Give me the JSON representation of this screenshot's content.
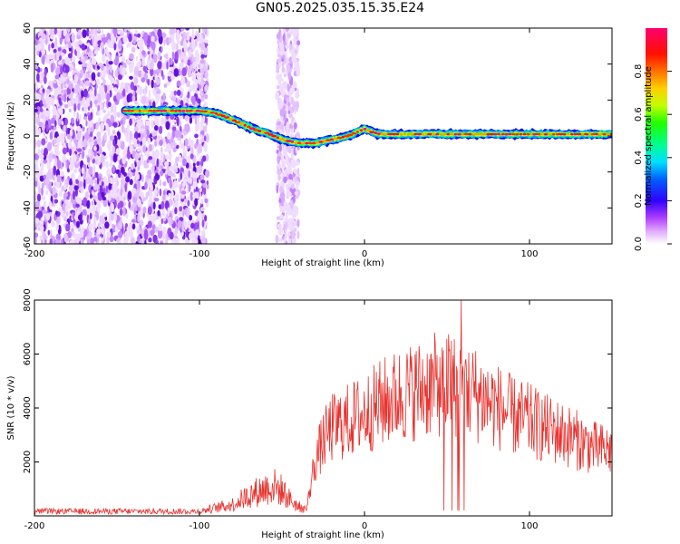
{
  "title": "GN05.2025.035.15.35.E24",
  "colors": {
    "snr_line": "#e8332f",
    "spectrogram_palette": [
      "#ffffff",
      "#d070ff",
      "#5a00d8",
      "#0000ff",
      "#00c8ff",
      "#00ff60",
      "#c8ff00",
      "#ff8000",
      "#ff0000",
      "#ff0060"
    ]
  },
  "chart_data": [
    {
      "type": "heatmap",
      "name": "spectrogram",
      "title": "GN05.2025.035.15.35.E24",
      "xlabel": "Height of straight line (km)",
      "ylabel": "Frequency (Hz)",
      "xlim": [
        -200,
        150
      ],
      "ylim": [
        -60,
        60
      ],
      "xticks": [
        -200,
        -100,
        0,
        100
      ],
      "yticks": [
        60,
        40,
        20,
        0,
        -20,
        -40,
        -60
      ],
      "colorbar": {
        "label": "Normalized spectral amplitude",
        "range": [
          0,
          1
        ],
        "ticks": [
          0.0,
          0.2,
          0.4,
          0.6,
          0.8
        ]
      },
      "ridge": {
        "description_points_x": [
          -145,
          -130,
          -120,
          -110,
          -100,
          -92,
          -85,
          -80,
          -75,
          -70,
          -65,
          -60,
          -55,
          -50,
          -45,
          -40,
          -35,
          -30,
          -25,
          -20,
          -15,
          -10,
          -5,
          0,
          5,
          10,
          20,
          40,
          60,
          80,
          100,
          120,
          140,
          150
        ],
        "frequency_hz": [
          14,
          14,
          14,
          14,
          14,
          13,
          11,
          9,
          7,
          5,
          3,
          2,
          0,
          -2,
          -3,
          -4,
          -4,
          -4,
          -3,
          -2,
          -1,
          0,
          2,
          4,
          2,
          1,
          1,
          1,
          1,
          1,
          1,
          1,
          1,
          1
        ]
      },
      "noise_regions_km": [
        [
          -200,
          -95
        ],
        [
          -53,
          -40
        ]
      ]
    },
    {
      "type": "line",
      "name": "snr",
      "xlabel": "Height of straight line (km)",
      "ylabel": "SNR (10 * v/v)",
      "xlim": [
        -200,
        150
      ],
      "ylim": [
        0,
        8000
      ],
      "xticks": [
        -200,
        -100,
        0,
        100
      ],
      "yticks": [
        2000,
        4000,
        6000,
        8000
      ],
      "envelope_x": [
        -200,
        -150,
        -110,
        -100,
        -80,
        -70,
        -60,
        -55,
        -50,
        -45,
        -40,
        -35,
        -30,
        -25,
        -20,
        -10,
        0,
        10,
        20,
        30,
        40,
        50,
        60,
        70,
        80,
        90,
        100,
        110,
        120,
        130,
        140,
        150
      ],
      "envelope_y": [
        150,
        150,
        300,
        200,
        500,
        900,
        1200,
        1300,
        1100,
        700,
        400,
        300,
        2200,
        3000,
        3500,
        3800,
        4100,
        4500,
        4800,
        5000,
        5200,
        5300,
        5100,
        4800,
        4400,
        4000,
        3800,
        3500,
        3300,
        3000,
        2700,
        2600
      ]
    }
  ]
}
